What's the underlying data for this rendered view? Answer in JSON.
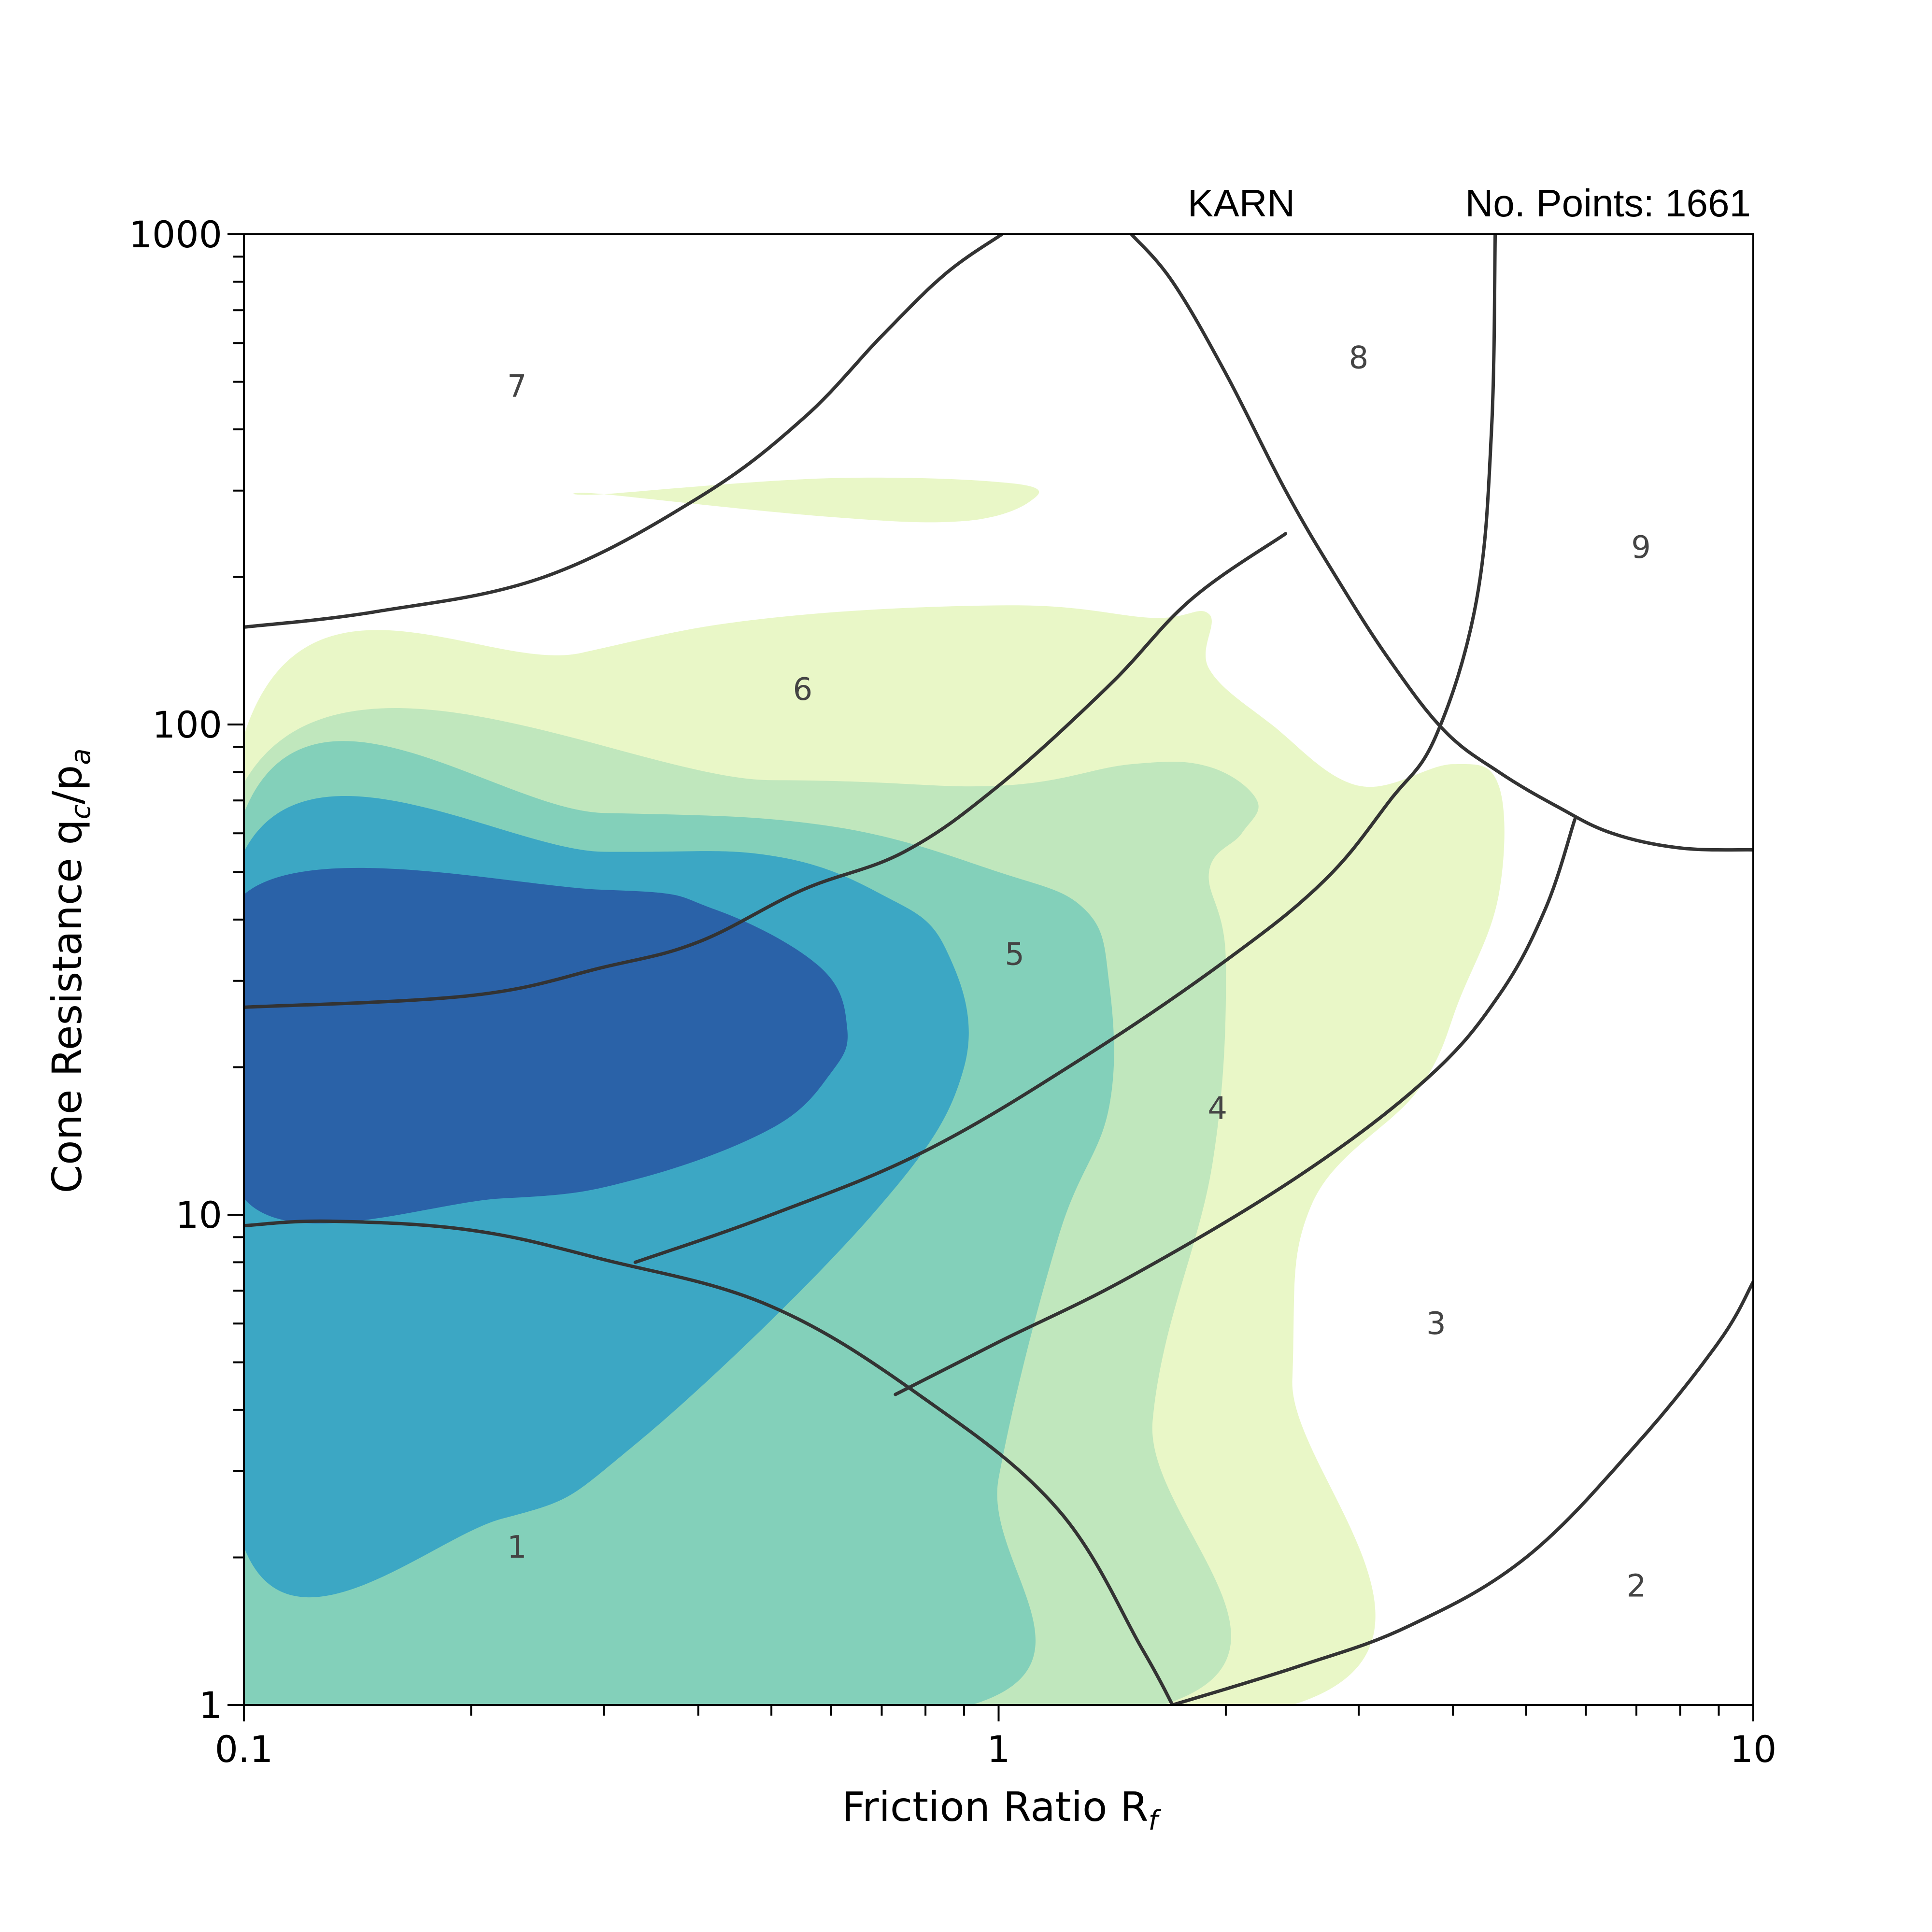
{
  "chart_data": {
    "type": "contour",
    "title_left": "KARN",
    "title_right": "No. Points: 1661",
    "xlabel": "Friction Ratio R",
    "xlabel_sub": "f",
    "ylabel_main": "Cone Resistance q",
    "ylabel_sub1": "c",
    "ylabel_mid": "/p",
    "ylabel_sub2": "a",
    "x_scale": "log",
    "y_scale": "log",
    "xlim": [
      0.1,
      10
    ],
    "ylim": [
      1,
      1000
    ],
    "x_tick_labels": [
      {
        "value": 0.1,
        "label": "0.1"
      },
      {
        "value": 1,
        "label": "1"
      },
      {
        "value": 10,
        "label": "10"
      }
    ],
    "y_tick_labels": [
      {
        "value": 1,
        "label": "1"
      },
      {
        "value": 10,
        "label": "10"
      },
      {
        "value": 100,
        "label": "100"
      },
      {
        "value": 1000,
        "label": "1000"
      }
    ],
    "colors": {
      "level1": "#e9f7c7",
      "level2": "#c0e7bd",
      "level3": "#83d0ba",
      "level4": "#3ca7c4",
      "level5": "#2a62a8",
      "boundary": "#333333"
    },
    "density_contours": [
      {
        "level": 1,
        "color": "level1",
        "points": [
          [
            0.1,
            1
          ],
          [
            2.45,
            1
          ],
          [
            2.45,
            4.6
          ],
          [
            2.6,
            10.5
          ],
          [
            3.6,
            18
          ],
          [
            4.1,
            28
          ],
          [
            4.6,
            45
          ],
          [
            4.6,
            75
          ],
          [
            4,
            83
          ],
          [
            3,
            75
          ],
          [
            2.3,
            100
          ],
          [
            1.9,
            130
          ],
          [
            1.9,
            168
          ],
          [
            1.6,
            165
          ],
          [
            1.05,
            175
          ],
          [
            0.5,
            165
          ],
          [
            0.28,
            140
          ],
          [
            0.1,
            95
          ]
        ]
      },
      {
        "level": 1,
        "color": "level1",
        "points": [
          [
            0.45,
            113
          ],
          [
            0.62,
            106
          ],
          [
            0.37,
            107
          ],
          [
            0.25,
            120
          ],
          [
            0.3,
            130
          ],
          [
            0.45,
            113
          ]
        ]
      },
      {
        "level": 1,
        "color": "level1",
        "points": [
          [
            0.3,
            295
          ],
          [
            0.6,
            318
          ],
          [
            1.05,
            310
          ],
          [
            1.1,
            285
          ],
          [
            0.9,
            260
          ],
          [
            0.6,
            265
          ],
          [
            0.3,
            295
          ]
        ]
      },
      {
        "level": 2,
        "color": "level2",
        "points": [
          [
            0.1,
            1
          ],
          [
            1.65,
            1
          ],
          [
            1.6,
            3.8
          ],
          [
            1.92,
            12.7
          ],
          [
            2,
            33
          ],
          [
            1.9,
            50
          ],
          [
            2.1,
            60
          ],
          [
            2.2,
            70
          ],
          [
            1.9,
            82
          ],
          [
            1.5,
            83
          ],
          [
            1,
            75
          ],
          [
            0.5,
            77
          ],
          [
            0.1,
            76
          ]
        ]
      },
      {
        "level": 3,
        "color": "level3",
        "points": [
          [
            0.1,
            1
          ],
          [
            0.92,
            1
          ],
          [
            1,
            2.9
          ],
          [
            1.2,
            9
          ],
          [
            1.4,
            16.5
          ],
          [
            1.4,
            30
          ],
          [
            1.3,
            42
          ],
          [
            1,
            50
          ],
          [
            0.6,
            62
          ],
          [
            0.3,
            66
          ],
          [
            0.1,
            66
          ]
        ]
      },
      {
        "level": 4,
        "color": "level4",
        "points": [
          [
            0.1,
            2.1
          ],
          [
            0.22,
            2.4
          ],
          [
            0.33,
            3.4
          ],
          [
            0.68,
            10
          ],
          [
            0.9,
            20
          ],
          [
            0.85,
            35
          ],
          [
            0.7,
            45
          ],
          [
            0.5,
            54
          ],
          [
            0.3,
            55
          ],
          [
            0.1,
            55
          ]
        ]
      },
      {
        "level": 5,
        "color": "level5",
        "points": [
          [
            0.1,
            10.8
          ],
          [
            0.22,
            10.8
          ],
          [
            0.33,
            11.8
          ],
          [
            0.5,
            15
          ],
          [
            0.6,
            19.5
          ],
          [
            0.63,
            24
          ],
          [
            0.58,
            32
          ],
          [
            0.42,
            42
          ],
          [
            0.3,
            46
          ],
          [
            0.1,
            45
          ]
        ]
      }
    ],
    "zone_boundaries": [
      [
        [
          0.1,
          9.5
        ],
        [
          0.13,
          9.7
        ],
        [
          0.2,
          9.3
        ],
        [
          0.3,
          8.1
        ],
        [
          0.5,
          6.5
        ],
        [
          0.8,
          4.2
        ],
        [
          1.2,
          2.5
        ],
        [
          1.55,
          1.3
        ],
        [
          1.7,
          1
        ]
      ],
      [
        [
          1.7,
          1
        ],
        [
          2.5,
          1.2
        ],
        [
          3.5,
          1.45
        ],
        [
          5,
          2
        ],
        [
          7,
          3.4
        ],
        [
          9,
          5.5
        ],
        [
          10,
          7.3
        ]
      ],
      [
        [
          0.73,
          4.3
        ],
        [
          1,
          5.5
        ],
        [
          1.5,
          7.5
        ],
        [
          2.5,
          12
        ],
        [
          3.7,
          19
        ],
        [
          4.6,
          28
        ],
        [
          5.3,
          42
        ],
        [
          5.8,
          64
        ]
      ],
      [
        [
          0.33,
          8
        ],
        [
          0.5,
          10
        ],
        [
          0.8,
          13.5
        ],
        [
          1.3,
          21
        ],
        [
          2,
          33
        ],
        [
          2.7,
          48
        ],
        [
          3.3,
          70
        ],
        [
          3.8,
          95
        ],
        [
          4.3,
          180
        ],
        [
          4.5,
          400
        ],
        [
          4.55,
          1000
        ]
      ],
      [
        [
          0.1,
          26.5
        ],
        [
          0.2,
          28
        ],
        [
          0.3,
          32
        ],
        [
          0.4,
          36
        ],
        [
          0.55,
          46
        ],
        [
          0.75,
          55
        ],
        [
          1,
          75
        ],
        [
          1.4,
          120
        ],
        [
          1.8,
          180
        ],
        [
          2.4,
          245
        ]
      ],
      [
        [
          0.1,
          158
        ],
        [
          0.15,
          170
        ],
        [
          0.25,
          200
        ],
        [
          0.4,
          290
        ],
        [
          0.55,
          420
        ],
        [
          0.7,
          620
        ],
        [
          0.85,
          830
        ],
        [
          1.01,
          1000
        ]
      ],
      [
        [
          1.5,
          1000
        ],
        [
          1.7,
          800
        ],
        [
          2,
          520
        ],
        [
          2.4,
          300
        ],
        [
          2.8,
          200
        ],
        [
          3.3,
          135
        ],
        [
          3.9,
          97
        ],
        [
          4.6,
          80
        ],
        [
          5.5,
          68
        ],
        [
          6.5,
          60
        ],
        [
          8,
          56
        ],
        [
          10,
          55.5
        ]
      ]
    ],
    "zone_labels": [
      {
        "text": "1",
        "x": 0.23,
        "y": 2.1
      },
      {
        "text": "2",
        "x": 7,
        "y": 1.75
      },
      {
        "text": "3",
        "x": 3.8,
        "y": 6
      },
      {
        "text": "4",
        "x": 1.95,
        "y": 16.5
      },
      {
        "text": "5",
        "x": 1.05,
        "y": 34
      },
      {
        "text": "6",
        "x": 0.55,
        "y": 118
      },
      {
        "text": "7",
        "x": 0.23,
        "y": 490
      },
      {
        "text": "8",
        "x": 3,
        "y": 560
      },
      {
        "text": "9",
        "x": 7.1,
        "y": 230
      }
    ]
  }
}
